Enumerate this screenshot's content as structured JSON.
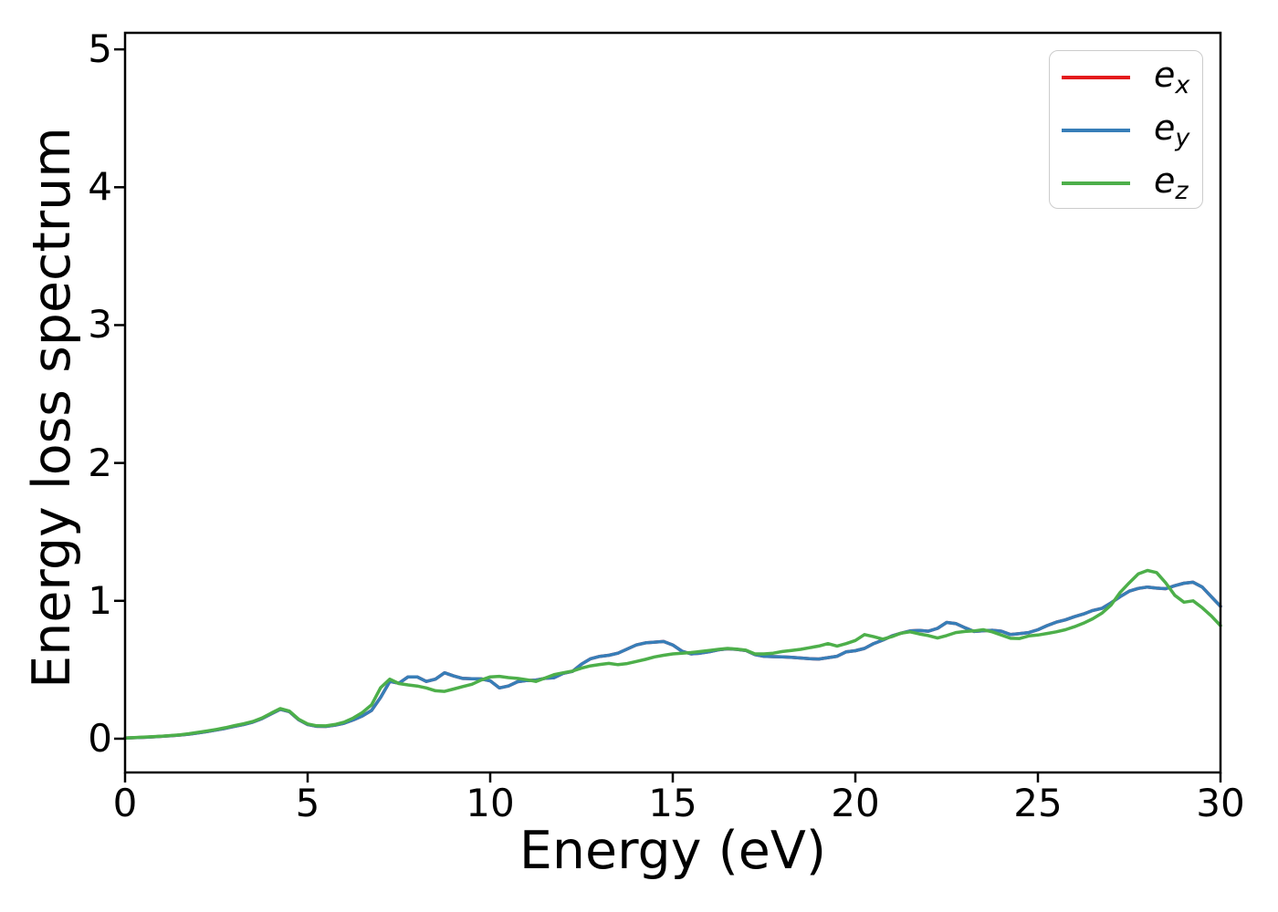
{
  "figure": {
    "background": "#ffffff",
    "spine_color": "#000000"
  },
  "chart_data": {
    "type": "line",
    "title": "",
    "xlabel": "Energy (eV)",
    "ylabel": "Energy loss spectrum",
    "xlim": [
      0,
      30
    ],
    "ylim": [
      -0.245,
      5.12
    ],
    "xticks": [
      0,
      5,
      10,
      15,
      20,
      25,
      30
    ],
    "yticks": [
      0,
      1,
      2,
      3,
      4,
      5
    ],
    "grid": false,
    "legend_position": "upper right",
    "x0": 0,
    "dx": 0.25,
    "series": [
      {
        "name": "e_x",
        "legend_base": "e",
        "legend_sub": "x",
        "color": "#e41a1c",
        "note": "hidden beneath e_y (identical values)",
        "values": [
          0.005,
          0.007,
          0.01,
          0.013,
          0.017,
          0.021,
          0.026,
          0.033,
          0.042,
          0.052,
          0.063,
          0.075,
          0.09,
          0.103,
          0.12,
          0.145,
          0.18,
          0.213,
          0.196,
          0.138,
          0.103,
          0.09,
          0.089,
          0.098,
          0.112,
          0.136,
          0.165,
          0.205,
          0.3,
          0.415,
          0.402,
          0.448,
          0.448,
          0.415,
          0.432,
          0.478,
          0.455,
          0.437,
          0.435,
          0.434,
          0.42,
          0.368,
          0.382,
          0.413,
          0.422,
          0.425,
          0.438,
          0.442,
          0.474,
          0.488,
          0.54,
          0.58,
          0.597,
          0.605,
          0.62,
          0.65,
          0.68,
          0.695,
          0.7,
          0.705,
          0.68,
          0.635,
          0.615,
          0.62,
          0.63,
          0.645,
          0.652,
          0.648,
          0.64,
          0.61,
          0.598,
          0.595,
          0.593,
          0.59,
          0.585,
          0.58,
          0.578,
          0.588,
          0.598,
          0.63,
          0.638,
          0.655,
          0.69,
          0.715,
          0.745,
          0.765,
          0.782,
          0.785,
          0.78,
          0.8,
          0.843,
          0.835,
          0.805,
          0.778,
          0.783,
          0.786,
          0.78,
          0.755,
          0.762,
          0.77,
          0.79,
          0.82,
          0.845,
          0.862,
          0.885,
          0.905,
          0.93,
          0.945,
          0.985,
          1.03,
          1.07,
          1.09,
          1.1,
          1.092,
          1.088,
          1.11,
          1.128,
          1.135,
          1.1,
          1.03,
          0.96
        ]
      },
      {
        "name": "e_y",
        "legend_base": "e",
        "legend_sub": "y",
        "color": "#377eb8",
        "values": [
          0.005,
          0.007,
          0.01,
          0.013,
          0.017,
          0.021,
          0.026,
          0.033,
          0.042,
          0.052,
          0.063,
          0.075,
          0.09,
          0.103,
          0.12,
          0.145,
          0.18,
          0.213,
          0.196,
          0.138,
          0.103,
          0.09,
          0.089,
          0.098,
          0.112,
          0.136,
          0.165,
          0.205,
          0.3,
          0.415,
          0.402,
          0.448,
          0.448,
          0.415,
          0.432,
          0.478,
          0.455,
          0.437,
          0.435,
          0.434,
          0.42,
          0.368,
          0.382,
          0.413,
          0.422,
          0.425,
          0.438,
          0.442,
          0.474,
          0.488,
          0.54,
          0.58,
          0.597,
          0.605,
          0.62,
          0.65,
          0.68,
          0.695,
          0.7,
          0.705,
          0.68,
          0.635,
          0.615,
          0.62,
          0.63,
          0.645,
          0.652,
          0.648,
          0.64,
          0.61,
          0.598,
          0.595,
          0.593,
          0.59,
          0.585,
          0.58,
          0.578,
          0.588,
          0.598,
          0.63,
          0.638,
          0.655,
          0.69,
          0.715,
          0.745,
          0.765,
          0.782,
          0.785,
          0.78,
          0.8,
          0.843,
          0.835,
          0.805,
          0.778,
          0.783,
          0.786,
          0.78,
          0.755,
          0.762,
          0.77,
          0.79,
          0.82,
          0.845,
          0.862,
          0.885,
          0.905,
          0.93,
          0.945,
          0.985,
          1.03,
          1.07,
          1.09,
          1.1,
          1.092,
          1.088,
          1.11,
          1.128,
          1.135,
          1.1,
          1.03,
          0.96
        ]
      },
      {
        "name": "e_z",
        "legend_base": "e",
        "legend_sub": "z",
        "color": "#4daf4a",
        "values": [
          0.005,
          0.008,
          0.011,
          0.014,
          0.018,
          0.023,
          0.028,
          0.036,
          0.046,
          0.056,
          0.067,
          0.08,
          0.095,
          0.108,
          0.125,
          0.15,
          0.185,
          0.218,
          0.2,
          0.142,
          0.107,
          0.094,
          0.093,
          0.103,
          0.12,
          0.15,
          0.19,
          0.245,
          0.37,
          0.432,
          0.4,
          0.39,
          0.382,
          0.368,
          0.348,
          0.343,
          0.36,
          0.378,
          0.395,
          0.425,
          0.448,
          0.452,
          0.443,
          0.437,
          0.428,
          0.415,
          0.44,
          0.465,
          0.478,
          0.49,
          0.512,
          0.528,
          0.538,
          0.546,
          0.537,
          0.545,
          0.56,
          0.575,
          0.593,
          0.605,
          0.615,
          0.62,
          0.625,
          0.632,
          0.64,
          0.648,
          0.655,
          0.65,
          0.642,
          0.615,
          0.615,
          0.62,
          0.632,
          0.64,
          0.648,
          0.66,
          0.672,
          0.69,
          0.672,
          0.69,
          0.712,
          0.755,
          0.74,
          0.722,
          0.74,
          0.765,
          0.775,
          0.76,
          0.748,
          0.73,
          0.748,
          0.77,
          0.778,
          0.782,
          0.79,
          0.775,
          0.752,
          0.728,
          0.727,
          0.745,
          0.752,
          0.763,
          0.775,
          0.79,
          0.812,
          0.838,
          0.87,
          0.91,
          0.968,
          1.06,
          1.13,
          1.195,
          1.22,
          1.205,
          1.13,
          1.04,
          0.99,
          1.0,
          0.95,
          0.89,
          0.82
        ]
      }
    ]
  }
}
